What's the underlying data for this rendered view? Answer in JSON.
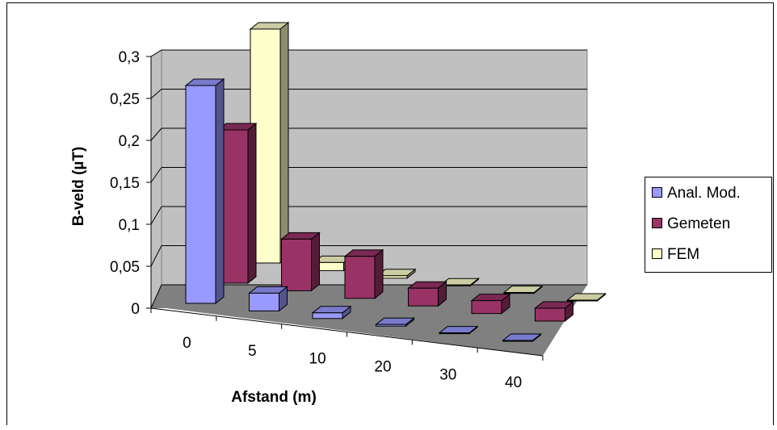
{
  "chart_data": {
    "type": "bar",
    "subtype": "3d-clustered-column",
    "title": "",
    "xlabel": "Afstand (m)",
    "ylabel": "B-veld (µT)",
    "categories": [
      "0",
      "5",
      "10",
      "20",
      "30",
      "40"
    ],
    "series": [
      {
        "name": "Anal. Mod.",
        "color": "#9999ff",
        "values": [
          0.27,
          0.022,
          0.007,
          0.002,
          0.001,
          0.001
        ]
      },
      {
        "name": "Gemeten",
        "color": "#993366",
        "values": [
          0.19,
          0.064,
          0.052,
          0.022,
          0.016,
          0.016
        ]
      },
      {
        "name": "FEM",
        "color": "#ffffcc",
        "values": [
          0.29,
          0.01,
          0.003,
          0.001,
          0.001,
          0.001
        ]
      }
    ],
    "yticks": [
      "0",
      "0,05",
      "0,1",
      "0,15",
      "0,2",
      "0,25",
      "0,3"
    ],
    "ylim": [
      0,
      0.3
    ],
    "grid": true,
    "legend": "right"
  }
}
